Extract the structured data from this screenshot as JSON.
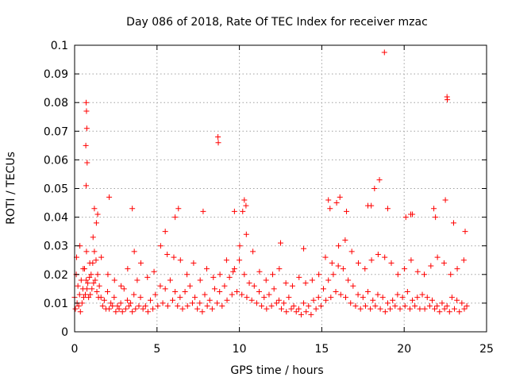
{
  "chart_data": {
    "type": "scatter",
    "title": "Day 086 of 2018, Rate Of TEC Index for receiver mzac",
    "xlabel": "GPS time / hours",
    "ylabel": "ROTI / TECUs",
    "xlim": [
      0,
      25
    ],
    "ylim": [
      0,
      0.1
    ],
    "xticks": [
      0,
      5,
      10,
      15,
      20,
      25
    ],
    "xtick_labels": [
      "0",
      "5",
      "10",
      "15",
      "20",
      "25"
    ],
    "yticks": [
      0,
      0.01,
      0.02,
      0.03,
      0.04,
      0.05,
      0.06,
      0.07,
      0.08,
      0.09,
      0.1
    ],
    "ytick_labels": [
      "0",
      "0.01",
      "0.02",
      "0.03",
      "0.04",
      "0.05",
      "0.06",
      "0.07",
      "0.08",
      "0.09",
      "0.1"
    ],
    "grid": true,
    "marker": "+",
    "color": "#ff0000",
    "series": [
      {
        "name": "ROTI",
        "x": [
          0.0,
          0.1,
          0.2,
          0.3,
          0.4,
          0.5,
          0.6,
          0.7,
          0.8,
          0.9,
          1.0,
          1.1,
          1.2,
          1.3,
          1.4,
          1.5,
          1.6,
          1.8,
          2.0,
          2.2,
          2.4,
          2.6,
          2.8,
          3.0,
          3.2,
          3.4,
          3.6,
          3.8,
          4.0,
          4.3,
          4.6,
          4.9,
          5.2,
          5.5,
          5.8,
          6.1,
          6.4,
          6.7,
          7.0,
          7.3,
          7.6,
          7.9,
          8.2,
          8.5,
          8.8,
          9.1,
          9.4,
          9.7,
          10.0,
          10.3,
          10.6,
          10.9,
          11.2,
          11.5,
          11.8,
          12.1,
          12.4,
          12.7,
          13.0,
          13.3,
          13.6,
          13.9,
          14.2,
          14.5,
          14.8,
          15.1,
          15.4,
          15.7,
          16.0,
          16.3,
          16.6,
          16.9,
          17.2,
          17.5,
          17.8,
          18.1,
          18.4,
          18.7,
          19.0,
          19.3,
          19.6,
          19.9,
          20.2,
          20.5,
          20.8,
          21.1,
          21.4,
          21.7,
          22.0,
          22.3,
          22.6,
          22.9,
          23.2,
          23.5,
          23.8,
          0.05,
          0.15,
          0.25,
          0.35,
          0.45,
          0.55,
          0.65,
          0.75,
          0.85,
          0.95,
          1.05,
          1.15,
          1.25,
          1.35,
          1.45,
          1.7,
          1.9,
          2.1,
          2.3,
          2.5,
          2.7,
          2.9,
          3.1,
          3.3,
          3.5,
          3.7,
          3.9,
          4.15,
          4.45,
          4.75,
          5.05,
          5.35,
          5.65,
          5.95,
          6.25,
          6.55,
          6.85,
          7.15,
          7.45,
          7.75,
          8.05,
          8.35,
          8.65,
          8.95,
          9.25,
          9.55,
          9.85,
          10.15,
          10.45,
          10.75,
          11.05,
          11.35,
          11.65,
          11.95,
          12.25,
          12.55,
          12.85,
          13.15,
          13.45,
          13.75,
          14.05,
          14.35,
          14.65,
          14.95,
          15.25,
          15.55,
          15.85,
          16.15,
          16.45,
          16.75,
          17.05,
          17.35,
          17.65,
          17.95,
          18.25,
          18.55,
          18.85,
          19.15,
          19.45,
          19.75,
          20.05,
          20.35,
          20.65,
          20.95,
          21.25,
          21.55,
          21.85,
          22.15,
          22.45,
          22.75,
          23.05,
          23.35,
          23.65,
          0.12,
          0.32,
          0.52,
          0.72,
          0.92,
          1.12,
          1.32,
          1.62,
          2.02,
          2.42,
          2.82,
          3.22,
          3.62,
          4.02,
          4.42,
          4.82,
          5.22,
          5.62,
          6.02,
          6.42,
          6.82,
          7.22,
          7.62,
          8.02,
          8.42,
          8.82,
          9.22,
          9.62,
          10.02,
          10.42,
          10.82,
          11.22,
          11.62,
          12.02,
          12.42,
          12.82,
          13.22,
          13.62,
          14.02,
          14.42,
          14.82,
          15.22,
          15.62,
          16.02,
          16.42,
          16.82,
          17.22,
          17.62,
          18.02,
          18.42,
          18.82,
          19.22,
          19.62,
          20.02,
          20.42,
          20.82,
          21.22,
          21.62,
          22.02,
          22.42,
          22.82,
          23.22,
          23.62,
          0.7,
          0.72,
          0.74,
          0.68,
          0.76,
          0.7,
          8.7,
          8.72,
          18.8,
          22.6,
          22.62,
          18.5,
          18.2,
          16.1,
          15.9,
          15.4,
          15.5,
          17.8,
          19.0,
          20.5,
          21.8,
          22.5,
          23.0,
          10.3,
          10.4,
          10.2,
          1.2,
          1.4,
          2.1,
          3.5,
          5.5,
          6.3,
          6.1,
          7.8,
          9.7,
          12.5,
          13.9,
          16.5,
          18.0,
          20.1,
          20.4,
          21.9,
          23.7
        ],
        "y": [
          0.012,
          0.02,
          0.016,
          0.013,
          0.018,
          0.015,
          0.022,
          0.018,
          0.017,
          0.019,
          0.02,
          0.024,
          0.028,
          0.025,
          0.02,
          0.016,
          0.012,
          0.011,
          0.014,
          0.01,
          0.012,
          0.009,
          0.01,
          0.015,
          0.011,
          0.01,
          0.013,
          0.018,
          0.012,
          0.009,
          0.011,
          0.013,
          0.016,
          0.015,
          0.018,
          0.014,
          0.012,
          0.014,
          0.016,
          0.012,
          0.01,
          0.013,
          0.011,
          0.015,
          0.014,
          0.016,
          0.019,
          0.022,
          0.025,
          0.02,
          0.017,
          0.016,
          0.014,
          0.012,
          0.013,
          0.015,
          0.011,
          0.01,
          0.012,
          0.009,
          0.008,
          0.01,
          0.009,
          0.011,
          0.012,
          0.015,
          0.018,
          0.02,
          0.023,
          0.022,
          0.018,
          0.016,
          0.013,
          0.012,
          0.014,
          0.011,
          0.013,
          0.012,
          0.01,
          0.011,
          0.013,
          0.012,
          0.014,
          0.011,
          0.012,
          0.013,
          0.012,
          0.011,
          0.009,
          0.01,
          0.009,
          0.012,
          0.011,
          0.01,
          0.009,
          0.008,
          0.01,
          0.009,
          0.007,
          0.01,
          0.012,
          0.013,
          0.015,
          0.012,
          0.013,
          0.015,
          0.017,
          0.018,
          0.014,
          0.012,
          0.009,
          0.008,
          0.008,
          0.009,
          0.007,
          0.008,
          0.007,
          0.008,
          0.009,
          0.007,
          0.008,
          0.009,
          0.008,
          0.007,
          0.008,
          0.009,
          0.01,
          0.009,
          0.011,
          0.009,
          0.008,
          0.009,
          0.01,
          0.008,
          0.007,
          0.009,
          0.008,
          0.01,
          0.009,
          0.011,
          0.013,
          0.014,
          0.013,
          0.012,
          0.011,
          0.01,
          0.009,
          0.008,
          0.009,
          0.01,
          0.008,
          0.007,
          0.008,
          0.007,
          0.006,
          0.007,
          0.006,
          0.008,
          0.009,
          0.011,
          0.012,
          0.014,
          0.013,
          0.012,
          0.01,
          0.009,
          0.008,
          0.009,
          0.008,
          0.009,
          0.008,
          0.007,
          0.008,
          0.009,
          0.008,
          0.009,
          0.008,
          0.009,
          0.008,
          0.008,
          0.009,
          0.008,
          0.007,
          0.008,
          0.007,
          0.008,
          0.007,
          0.008,
          0.026,
          0.03,
          0.022,
          0.028,
          0.024,
          0.033,
          0.038,
          0.026,
          0.02,
          0.018,
          0.016,
          0.022,
          0.028,
          0.024,
          0.019,
          0.021,
          0.03,
          0.027,
          0.026,
          0.025,
          0.02,
          0.024,
          0.018,
          0.022,
          0.019,
          0.02,
          0.025,
          0.021,
          0.03,
          0.034,
          0.028,
          0.021,
          0.018,
          0.02,
          0.022,
          0.017,
          0.016,
          0.019,
          0.017,
          0.018,
          0.02,
          0.026,
          0.024,
          0.03,
          0.032,
          0.028,
          0.024,
          0.022,
          0.025,
          0.027,
          0.026,
          0.024,
          0.02,
          0.022,
          0.025,
          0.021,
          0.02,
          0.023,
          0.026,
          0.024,
          0.02,
          0.022,
          0.025,
          0.08,
          0.077,
          0.071,
          0.065,
          0.059,
          0.051,
          0.068,
          0.066,
          0.0975,
          0.082,
          0.081,
          0.053,
          0.05,
          0.047,
          0.045,
          0.046,
          0.043,
          0.044,
          0.043,
          0.041,
          0.043,
          0.046,
          0.038,
          0.046,
          0.044,
          0.042,
          0.043,
          0.041,
          0.047,
          0.043,
          0.035,
          0.043,
          0.04,
          0.042,
          0.042,
          0.031,
          0.029,
          0.042,
          0.044,
          0.04,
          0.041,
          0.04,
          0.035
        ]
      }
    ]
  }
}
